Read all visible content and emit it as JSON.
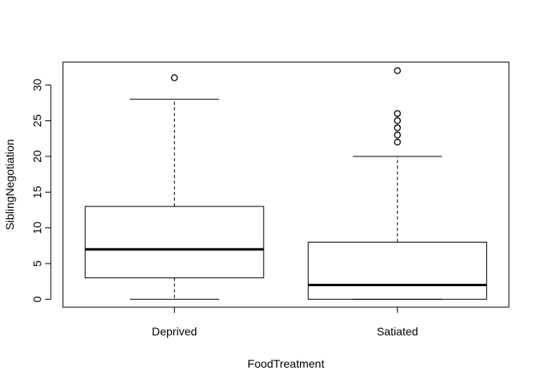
{
  "chart_data": {
    "type": "boxplot",
    "title": "",
    "xlabel": "FoodTreatment",
    "ylabel": "SiblingNegotiation",
    "ylim": [
      -1.1,
      33.2
    ],
    "yticks": [
      0,
      5,
      10,
      15,
      20,
      25,
      30
    ],
    "grid": false,
    "categories": [
      "Deprived",
      "Satiated"
    ],
    "boxes": [
      {
        "category": "Deprived",
        "whisker_low": 0,
        "q1": 3,
        "median": 7,
        "q3": 13,
        "whisker_high": 28,
        "outliers": [
          31
        ]
      },
      {
        "category": "Satiated",
        "whisker_low": 0,
        "q1": 0,
        "median": 2,
        "q3": 8,
        "whisker_high": 20,
        "outliers": [
          22,
          23,
          24,
          25,
          26,
          32
        ]
      }
    ]
  }
}
